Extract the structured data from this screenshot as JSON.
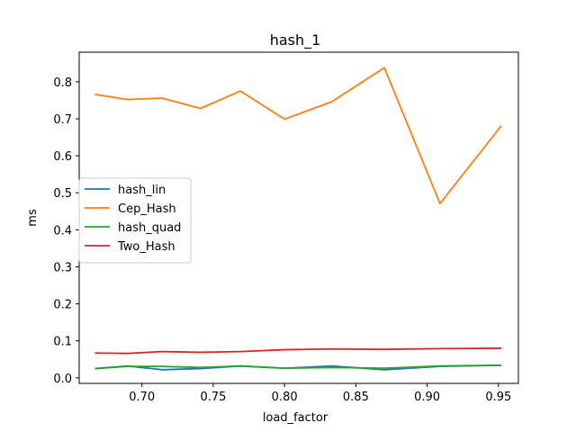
{
  "chart_data": {
    "type": "line",
    "title": "hash_1",
    "xlabel": "load_factor",
    "ylabel": "ms",
    "xlim": [
      0.656,
      0.964
    ],
    "ylim": [
      -0.015,
      0.88
    ],
    "xticks": [
      0.7,
      0.75,
      0.8,
      0.85,
      0.9,
      0.95
    ],
    "xtick_labels": [
      "0.70",
      "0.75",
      "0.80",
      "0.85",
      "0.90",
      "0.95"
    ],
    "yticks": [
      0.0,
      0.1,
      0.2,
      0.3,
      0.4,
      0.5,
      0.6,
      0.7,
      0.8
    ],
    "ytick_labels": [
      "0.0",
      "0.1",
      "0.2",
      "0.3",
      "0.4",
      "0.5",
      "0.6",
      "0.7",
      "0.8"
    ],
    "grid": false,
    "legend_position": "center-left",
    "x": [
      0.667,
      0.69,
      0.714,
      0.741,
      0.769,
      0.8,
      0.833,
      0.87,
      0.909,
      0.952
    ],
    "series": [
      {
        "name": "hash_lin",
        "color": "#1f77b4",
        "values": [
          0.025,
          0.032,
          0.022,
          0.025,
          0.032,
          0.026,
          0.032,
          0.022,
          0.031,
          0.034
        ]
      },
      {
        "name": "Cep_Hash",
        "color": "#ff7f0e",
        "values": [
          0.766,
          0.752,
          0.756,
          0.728,
          0.775,
          0.699,
          0.746,
          0.838,
          0.471,
          0.681
        ]
      },
      {
        "name": "hash_quad",
        "color": "#2ca02c",
        "values": [
          0.025,
          0.031,
          0.031,
          0.028,
          0.032,
          0.026,
          0.028,
          0.026,
          0.032,
          0.034
        ]
      },
      {
        "name": "Two_Hash",
        "color": "#d62728",
        "values": [
          0.067,
          0.066,
          0.071,
          0.069,
          0.071,
          0.076,
          0.078,
          0.077,
          0.079,
          0.08
        ]
      }
    ]
  }
}
